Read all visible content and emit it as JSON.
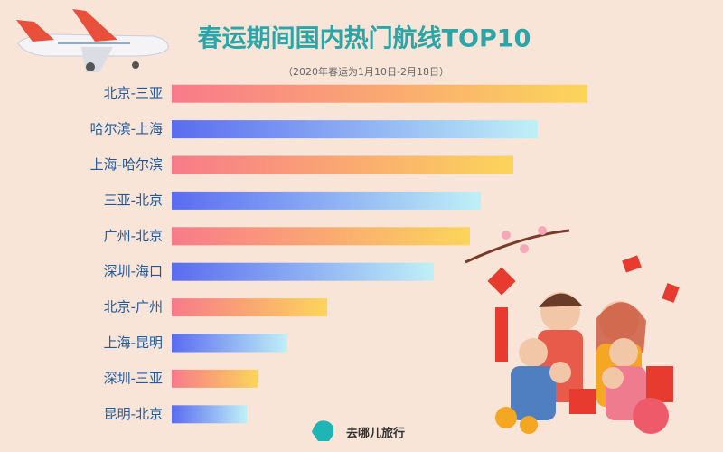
{
  "chart_data": {
    "type": "bar",
    "orientation": "horizontal",
    "title": "春运期间国内热门航线TOP10",
    "subtitle": "（2020年春运为1月10日-2月18日）",
    "categories": [
      "北京-三亚",
      "哈尔滨-上海",
      "上海-哈尔滨",
      "三亚-北京",
      "广州-北京",
      "深圳-海口",
      "北京-广州",
      "上海-昆明",
      "深圳-三亚",
      "昆明-北京"
    ],
    "values": [
      460,
      405,
      378,
      342,
      330,
      290,
      172,
      128,
      95,
      83
    ],
    "xlim": [
      0,
      460
    ],
    "colors": [
      [
        "#f87a8a",
        "#fbd55a"
      ],
      [
        "#5a6cf0",
        "#bff0f6"
      ],
      [
        "#f87a8a",
        "#fbd55a"
      ],
      [
        "#5a6cf0",
        "#bff0f6"
      ],
      [
        "#f87a8a",
        "#fbd55a"
      ],
      [
        "#5a6cf0",
        "#bff0f6"
      ],
      [
        "#f87a8a",
        "#fbd55a"
      ],
      [
        "#5a6cf0",
        "#bff0f6"
      ],
      [
        "#f87a8a",
        "#fbd55a"
      ],
      [
        "#5a6cf0",
        "#bff0f6"
      ]
    ]
  },
  "footer": {
    "brand": "去哪儿旅行"
  }
}
